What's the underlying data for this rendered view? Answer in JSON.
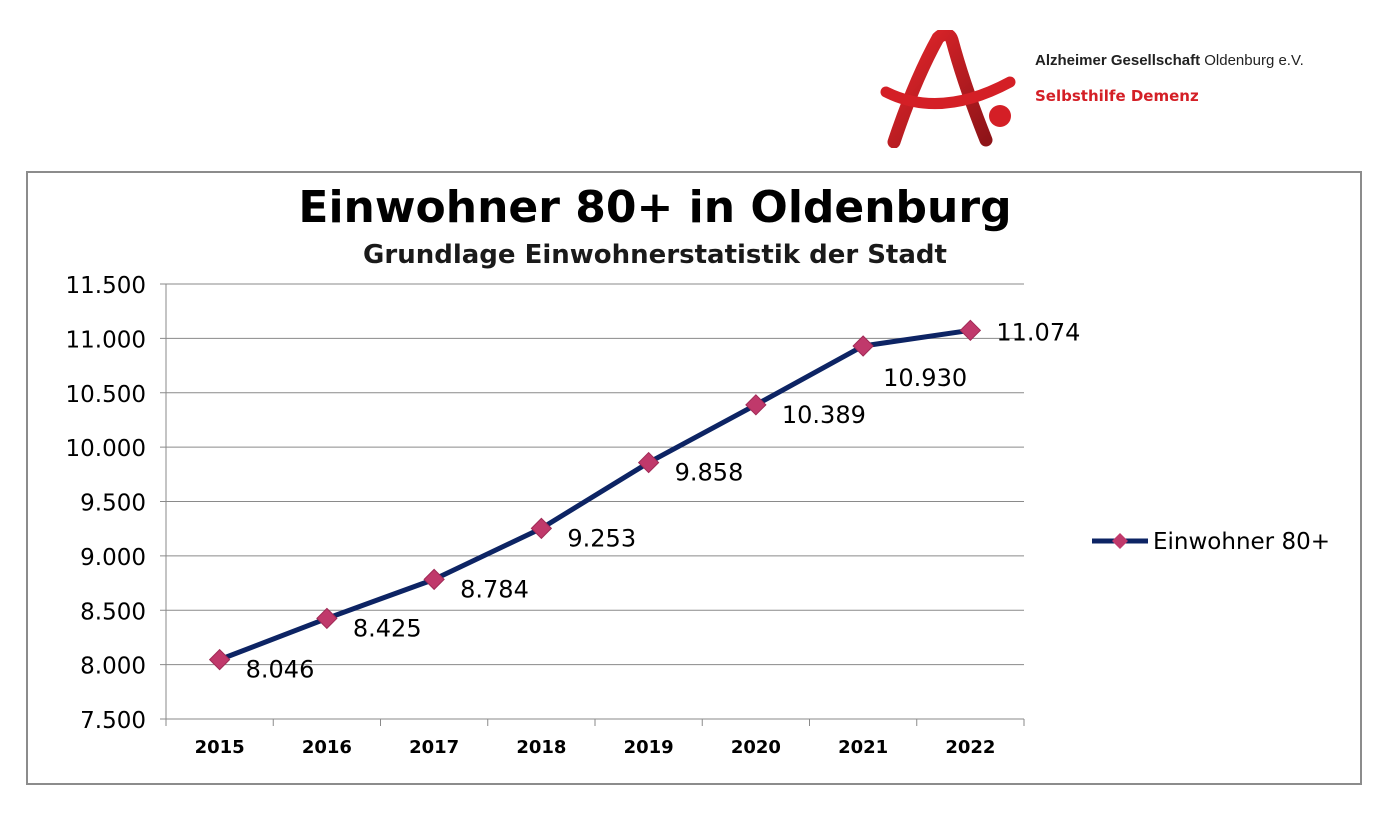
{
  "header": {
    "org_name_bold": "Alzheimer Gesellschaft",
    "org_name_regular": "Oldenburg e.V.",
    "org_subtitle": "Selbsthilfe Demenz",
    "logo_icon": "alzheimer-a-logo",
    "brand_color": "#d41f26"
  },
  "chart_data": {
    "type": "line",
    "title": "Einwohner 80+ in Oldenburg",
    "subtitle": "Grundlage Einwohnerstatistik der Stadt",
    "categories": [
      "2015",
      "2016",
      "2017",
      "2018",
      "2019",
      "2020",
      "2021",
      "2022"
    ],
    "series": [
      {
        "name": "Einwohner 80+",
        "values": [
          8046,
          8425,
          8784,
          9253,
          9858,
          10389,
          10930,
          11074
        ],
        "labels": [
          "8.046",
          "8.425",
          "8.784",
          "9.253",
          "9.858",
          "10.389",
          "10.930",
          "11.074"
        ],
        "line_color": "#0d2464",
        "marker_color": "#c0396b",
        "marker": "diamond"
      }
    ],
    "ylim": [
      7500,
      11500
    ],
    "yticks": [
      7500,
      8000,
      8500,
      9000,
      9500,
      10000,
      10500,
      11000,
      11500
    ],
    "ytick_labels": [
      "7.500",
      "8.000",
      "8.500",
      "9.000",
      "9.500",
      "10.000",
      "10.500",
      "11.000",
      "11.500"
    ],
    "grid": true,
    "legend": "right"
  }
}
